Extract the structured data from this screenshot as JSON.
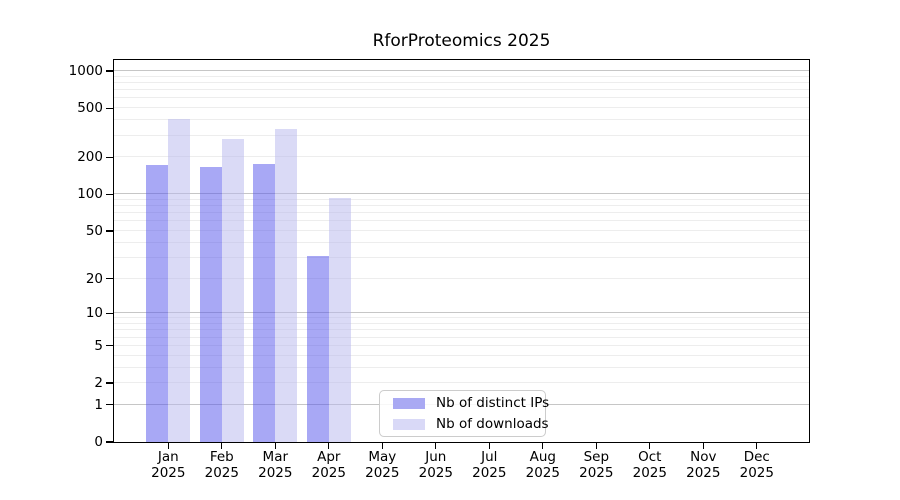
{
  "title": "RforProteomics 2025",
  "legend": {
    "items": [
      {
        "label": "Nb of distinct IPs",
        "color": "#a9a9f3"
      },
      {
        "label": "Nb of downloads",
        "color": "#d9d9f7"
      }
    ]
  },
  "colors": {
    "bar_ips": "#a9a9f3",
    "bar_ips_fill": "rgba(81,81,235,0.5)",
    "bar_downloads": "#d9d9f7",
    "bar_downloads_fill": "rgba(181,181,237,0.5)",
    "grid_major": "#c6c6c6",
    "grid_minor": "#ededed",
    "axis": "#000000",
    "background": "#ffffff"
  },
  "chart_data": {
    "type": "bar",
    "title": "RforProteomics 2025",
    "xlabel": "",
    "ylabel": "",
    "scale": "log1p",
    "grid": true,
    "legend_position": "lower center",
    "categories": [
      "Jan 2025",
      "Feb 2025",
      "Mar 2025",
      "Apr 2025",
      "May 2025",
      "Jun 2025",
      "Jul 2025",
      "Aug 2025",
      "Sep 2025",
      "Oct 2025",
      "Nov 2025",
      "Dec 2025"
    ],
    "series": [
      {
        "name": "Nb of distinct IPs",
        "values": [
          172,
          168,
          175,
          31,
          null,
          null,
          null,
          null,
          null,
          null,
          null,
          null
        ]
      },
      {
        "name": "Nb of downloads",
        "values": [
          410,
          282,
          341,
          93,
          null,
          null,
          null,
          null,
          null,
          null,
          null,
          null
        ]
      }
    ],
    "yticks": [
      0,
      1,
      2,
      5,
      10,
      20,
      50,
      100,
      200,
      500,
      1000
    ],
    "gridlines": {
      "major": [
        1,
        10,
        100,
        1000
      ],
      "minor": [
        2,
        3,
        4,
        5,
        6,
        7,
        8,
        9,
        20,
        30,
        40,
        50,
        60,
        70,
        80,
        90,
        200,
        300,
        400,
        500,
        600,
        700,
        800,
        900
      ]
    },
    "ylim": [
      0,
      1280
    ]
  }
}
